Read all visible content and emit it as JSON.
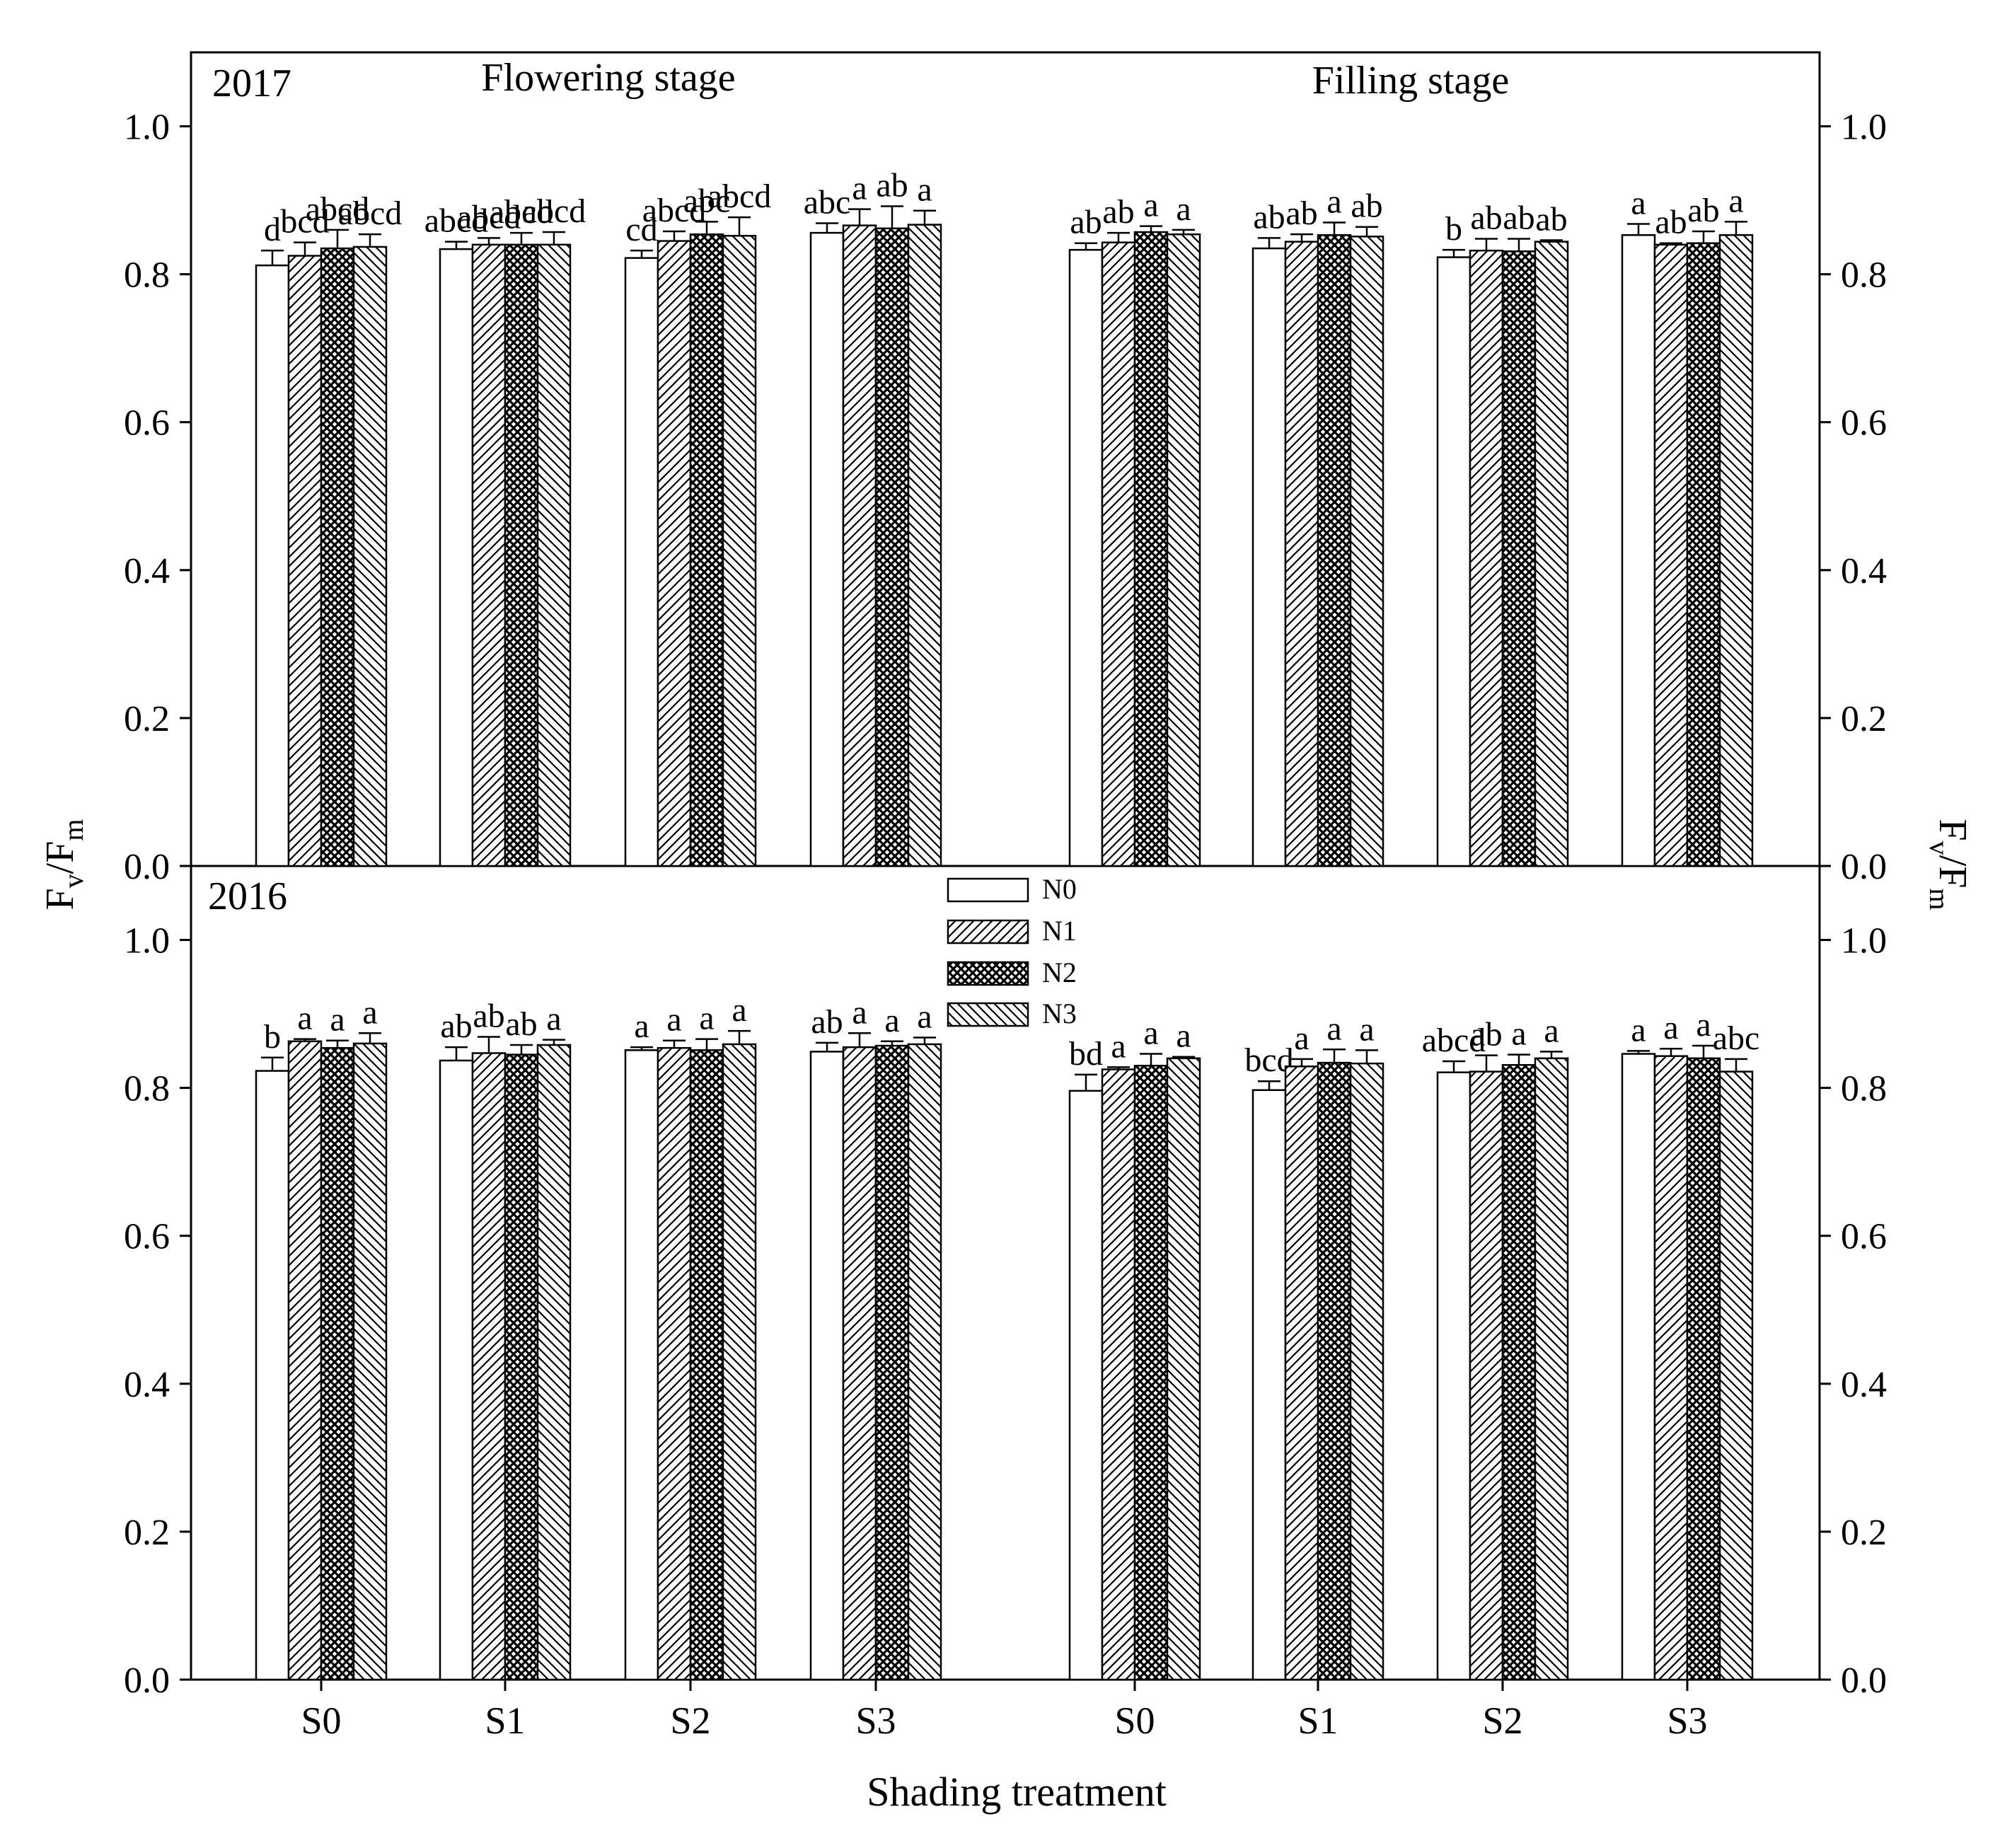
{
  "chart_data": {
    "type": "bar",
    "y_label": {
      "main": "F",
      "sub1": "v",
      "slash": "/F",
      "sub2": "m"
    },
    "x_label": "Shading treatment",
    "ylim": [
      0,
      1.1
    ],
    "y_ticks": [
      "0.0",
      "0.2",
      "0.4",
      "0.6",
      "0.8",
      "1.0"
    ],
    "y_tick_values": [
      0,
      0.2,
      0.4,
      0.6,
      0.8,
      1.0
    ],
    "categories": [
      "S0",
      "S1",
      "S2",
      "S3"
    ],
    "stage_labels": [
      "Flowering stage",
      "Filling stage"
    ],
    "legend": [
      "N0",
      "N1",
      "N2",
      "N3"
    ],
    "panels": [
      {
        "year": "2017",
        "groups": [
          {
            "stage": "Flowering stage",
            "category": "S0",
            "values": [
              0.812,
              0.825,
              0.835,
              0.837
            ],
            "errors": [
              0.02,
              0.018,
              0.025,
              0.017
            ],
            "letters": [
              "d",
              "bcd",
              "abcd",
              "abcd"
            ]
          },
          {
            "stage": "Flowering stage",
            "category": "S1",
            "values": [
              0.834,
              0.84,
              0.84,
              0.84
            ],
            "errors": [
              0.01,
              0.009,
              0.016,
              0.017
            ],
            "letters": [
              "abcd",
              "abcd",
              "abcd",
              "abcd"
            ]
          },
          {
            "stage": "Flowering stage",
            "category": "S2",
            "values": [
              0.822,
              0.845,
              0.854,
              0.852
            ],
            "errors": [
              0.01,
              0.013,
              0.017,
              0.025
            ],
            "letters": [
              "cd",
              "abcd",
              "abc",
              "abcd"
            ]
          },
          {
            "stage": "Flowering stage",
            "category": "S3",
            "values": [
              0.856,
              0.866,
              0.862,
              0.867
            ],
            "errors": [
              0.013,
              0.022,
              0.03,
              0.019
            ],
            "letters": [
              "abc",
              "a",
              "ab",
              "a"
            ]
          },
          {
            "stage": "Filling stage",
            "category": "S0",
            "values": [
              0.833,
              0.843,
              0.857,
              0.854
            ],
            "errors": [
              0.009,
              0.013,
              0.008,
              0.006
            ],
            "letters": [
              "ab",
              "ab",
              "a",
              "a"
            ]
          },
          {
            "stage": "Filling stage",
            "category": "S1",
            "values": [
              0.835,
              0.844,
              0.853,
              0.851
            ],
            "errors": [
              0.014,
              0.01,
              0.017,
              0.013
            ],
            "letters": [
              "ab",
              "ab",
              "a",
              "ab"
            ]
          },
          {
            "stage": "Filling stage",
            "category": "S2",
            "values": [
              0.823,
              0.832,
              0.831,
              0.844
            ],
            "errors": [
              0.01,
              0.016,
              0.017,
              0.002
            ],
            "letters": [
              "b",
              "ab",
              "ab",
              "ab"
            ]
          },
          {
            "stage": "Filling stage",
            "category": "S3",
            "values": [
              0.853,
              0.84,
              0.842,
              0.853
            ],
            "errors": [
              0.015,
              0.002,
              0.016,
              0.018
            ],
            "letters": [
              "a",
              "ab",
              "ab",
              "a"
            ]
          }
        ]
      },
      {
        "year": "2016",
        "groups": [
          {
            "stage": "Flowering stage",
            "category": "S0",
            "values": [
              0.823,
              0.863,
              0.854,
              0.86
            ],
            "errors": [
              0.018,
              0.003,
              0.01,
              0.014
            ],
            "letters": [
              "b",
              "a",
              "a",
              "a"
            ]
          },
          {
            "stage": "Flowering stage",
            "category": "S1",
            "values": [
              0.837,
              0.847,
              0.845,
              0.858
            ],
            "errors": [
              0.018,
              0.022,
              0.013,
              0.007
            ],
            "letters": [
              "ab",
              "ab",
              "ab",
              "a"
            ]
          },
          {
            "stage": "Flowering stage",
            "category": "S2",
            "values": [
              0.851,
              0.854,
              0.851,
              0.859
            ],
            "errors": [
              0.004,
              0.01,
              0.015,
              0.018
            ],
            "letters": [
              "a",
              "a",
              "a",
              "a"
            ]
          },
          {
            "stage": "Flowering stage",
            "category": "S3",
            "values": [
              0.849,
              0.855,
              0.857,
              0.859
            ],
            "errors": [
              0.012,
              0.019,
              0.006,
              0.009
            ],
            "letters": [
              "ab",
              "a",
              "a",
              "a"
            ]
          },
          {
            "stage": "Filling stage",
            "category": "S0",
            "values": [
              0.796,
              0.825,
              0.83,
              0.84
            ],
            "errors": [
              0.022,
              0.003,
              0.016,
              0.002
            ],
            "letters": [
              "bd",
              "a",
              "a",
              "a"
            ]
          },
          {
            "stage": "Filling stage",
            "category": "S1",
            "values": [
              0.797,
              0.829,
              0.834,
              0.833
            ],
            "errors": [
              0.012,
              0.01,
              0.018,
              0.018
            ],
            "letters": [
              "bcd",
              "a",
              "a",
              "a"
            ]
          },
          {
            "stage": "Filling stage",
            "category": "S2",
            "values": [
              0.821,
              0.822,
              0.831,
              0.84
            ],
            "errors": [
              0.015,
              0.022,
              0.014,
              0.009
            ],
            "letters": [
              "abcd",
              "ab",
              "a",
              "a"
            ]
          },
          {
            "stage": "Filling stage",
            "category": "S3",
            "values": [
              0.846,
              0.843,
              0.84,
              0.822
            ],
            "errors": [
              0.004,
              0.01,
              0.017,
              0.017
            ],
            "letters": [
              "a",
              "a",
              "a",
              "abc"
            ]
          }
        ]
      }
    ]
  }
}
